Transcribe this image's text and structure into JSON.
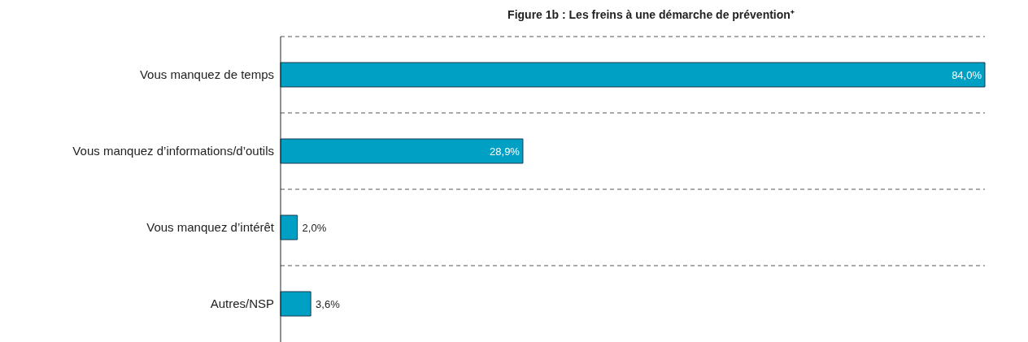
{
  "chart_data": {
    "type": "bar",
    "orientation": "horizontal",
    "title": "Figure 1b : Les freins à une démarche de prévention⁺",
    "categories": [
      "Vous manquez de temps",
      "Vous manquez d’informations/d’outils",
      "Vous manquez d’intérêt",
      "Autres/NSP"
    ],
    "values": [
      84.0,
      28.9,
      2.0,
      3.6
    ],
    "color": "#00a0c4",
    "value_labels": [
      "84,0%",
      "28,9%",
      "2,0%",
      "3,6%"
    ],
    "grid": "y"
  }
}
